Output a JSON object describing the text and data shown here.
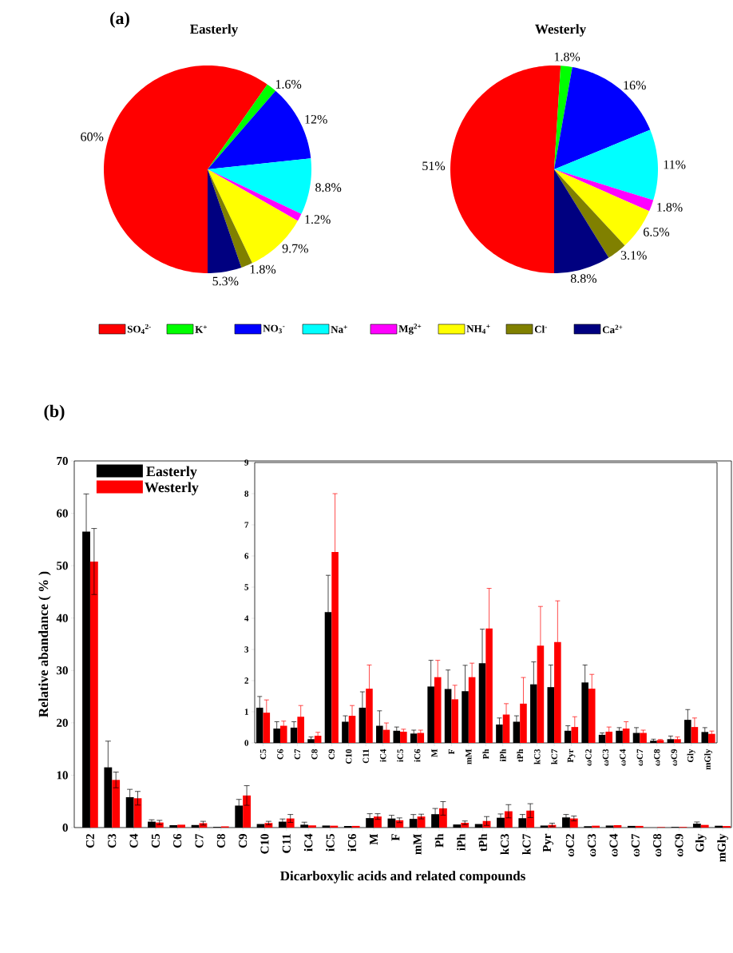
{
  "chart_data": [
    {
      "type": "pie",
      "title": "Easterly",
      "annotations": [
        "(a)"
      ],
      "legend": "bottom",
      "categories": [
        "SO$_{4}$$^{2-}$",
        "K$^{+}$",
        "NO$_{3}$$^{-}$",
        "Na$^{+}$",
        "Mg$^{2+}$",
        "NH$_{4}$$^{+}$",
        "Cl$^{-}$",
        "Ca$^{2+}$"
      ],
      "values": [
        60,
        1.6,
        12,
        8.8,
        1.2,
        9.7,
        1.8,
        5.3
      ],
      "value_labels": [
        "60%",
        "1.6%",
        "12%",
        "8.8%",
        "1.2%",
        "9.7%",
        "1.8%",
        "5.3%"
      ],
      "colors": [
        "#ff0000",
        "#00ff00",
        "#0000ff",
        "#00ffff",
        "#ff00ff",
        "#ffff00",
        "#808000",
        "#000080"
      ]
    },
    {
      "type": "pie",
      "title": "Westerly",
      "categories": [
        null,
        null,
        null,
        null,
        null,
        null,
        null,
        null
      ],
      "values": [
        51,
        1.8,
        16,
        11,
        1.8,
        6.5,
        3.1,
        8.8
      ],
      "value_labels": [
        "51%",
        "1.8%",
        "16%",
        "11%",
        "1.8%",
        "6.5%",
        "3.1%",
        "8.8%"
      ],
      "colors": [
        "#ff0000",
        "#00ff00",
        "#0000ff",
        "#00ffff",
        "#ff00ff",
        "#ffff00",
        "#808000",
        "#000080"
      ]
    },
    {
      "type": "bar",
      "annotations": [
        "(b)"
      ],
      "xlabel": "Dicarboxylic acids and related compounds",
      "ylabel": "Relative abandance ( % )",
      "legend": "top left",
      "categories": [
        "C2",
        "C3",
        "C4",
        "C5",
        "C6",
        "C7",
        "C8",
        "C9",
        "C10",
        "C11",
        "iC4",
        "iC5",
        "iC6",
        "M",
        "F",
        "mM",
        "Ph",
        "iPh",
        "tPh",
        "kC3",
        "kC7",
        "Pyr",
        "ωC2",
        "ωC3",
        "ωC4",
        "ωC7",
        "ωC8",
        "ωC9",
        "Gly",
        "mGly"
      ],
      "series": [
        {
          "name": "Easterly",
          "color": "#000000",
          "values": [
            56.5,
            11.5,
            5.8,
            1.13,
            0.46,
            0.49,
            0.12,
            4.2,
            0.68,
            1.13,
            0.55,
            0.39,
            0.3,
            1.81,
            1.73,
            1.66,
            2.56,
            0.59,
            0.68,
            1.88,
            1.79,
            0.39,
            1.94,
            0.26,
            0.39,
            0.32,
            null,
            0.12,
            0.74,
            0.35
          ],
          "errors": [
            7.2,
            5.0,
            1.5,
            0.36,
            null,
            null,
            null,
            1.18,
            null,
            0.51,
            0.48,
            null,
            null,
            0.84,
            0.61,
            0.83,
            1.09,
            null,
            null,
            0.72,
            0.71,
            null,
            0.56,
            null,
            null,
            null,
            null,
            null,
            0.33,
            null
          ]
        },
        {
          "name": "Westerly",
          "color": "#ff0000",
          "values": [
            50.8,
            9.1,
            5.6,
            0.97,
            0.55,
            0.84,
            0.23,
            6.13,
            0.87,
            1.74,
            0.42,
            0.36,
            0.32,
            2.11,
            1.4,
            2.11,
            3.67,
            0.91,
            1.26,
            3.12,
            3.24,
            0.51,
            1.74,
            0.36,
            0.46,
            0.32,
            0.09,
            0.12,
            0.51,
            0.29
          ],
          "errors": [
            6.3,
            1.5,
            1.3,
            0.41,
            null,
            0.36,
            null,
            1.87,
            0.33,
            0.76,
            null,
            null,
            null,
            0.54,
            0.45,
            0.45,
            1.29,
            0.35,
            0.84,
            1.26,
            1.32,
            0.33,
            0.46,
            null,
            null,
            null,
            null,
            null,
            null,
            null
          ]
        }
      ],
      "ylim": [
        0,
        70
      ],
      "yticks": [
        0,
        10,
        20,
        30,
        40,
        50,
        60,
        70
      ]
    },
    {
      "type": "bar",
      "categories": [
        "C5",
        "C6",
        "C7",
        "C8",
        "C9",
        "C10",
        "C11",
        "iC4",
        "iC5",
        "iC6",
        "M",
        "F",
        "mM",
        "Ph",
        "iPh",
        "tPh",
        "kC3",
        "kC7",
        "Pyr",
        "ωC2",
        "ωC3",
        "ωC4",
        "ωC7",
        "ωC8",
        "ωC9",
        "Gly",
        "mGly"
      ],
      "series": [
        {
          "color": "#000000",
          "values": [
            1.13,
            0.46,
            0.49,
            0.12,
            4.2,
            0.68,
            1.13,
            0.55,
            0.39,
            0.3,
            1.81,
            1.73,
            1.66,
            2.56,
            0.59,
            0.68,
            1.88,
            1.79,
            0.39,
            1.94,
            0.26,
            0.39,
            0.32,
            0.07,
            0.12,
            0.74,
            0.35
          ],
          "errors": [
            0.36,
            0.22,
            0.19,
            0.07,
            1.18,
            0.19,
            0.51,
            0.48,
            0.12,
            0.11,
            0.84,
            0.61,
            0.83,
            1.09,
            0.21,
            0.19,
            0.72,
            0.71,
            0.16,
            0.56,
            0.06,
            0.1,
            0.17,
            0.05,
            0.1,
            0.33,
            0.14
          ]
        },
        {
          "color": "#ff0000",
          "values": [
            0.97,
            0.55,
            0.84,
            0.23,
            6.13,
            0.87,
            1.74,
            0.42,
            0.36,
            0.32,
            2.11,
            1.4,
            2.11,
            3.67,
            0.91,
            1.26,
            3.12,
            3.24,
            0.51,
            1.74,
            0.36,
            0.46,
            0.32,
            0.09,
            0.12,
            0.51,
            0.29
          ],
          "errors": [
            0.41,
            0.15,
            0.36,
            0.11,
            1.87,
            0.33,
            0.76,
            0.22,
            0.08,
            0.09,
            0.54,
            0.45,
            0.45,
            1.29,
            0.35,
            0.84,
            1.26,
            1.32,
            0.33,
            0.46,
            0.15,
            0.22,
            0.09,
            0.02,
            0.07,
            0.29,
            0.09
          ]
        }
      ],
      "ylim": [
        0,
        9
      ],
      "yticks": [
        0,
        1,
        2,
        3,
        4,
        5,
        6,
        7,
        8,
        9
      ]
    }
  ]
}
